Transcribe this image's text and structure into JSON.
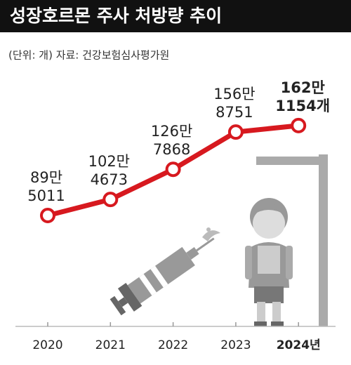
{
  "chart_data": {
    "type": "line",
    "title": "성장호르몬 주사 처방량 추이",
    "subtitle": "(단위: 개)  자료: 건강보험심사평가원",
    "categories": [
      "2020",
      "2021",
      "2022",
      "2023",
      "2024년"
    ],
    "series": [
      {
        "color": "#d7191f",
        "values": [
          895011,
          1024673,
          1267868,
          1568751,
          1621154
        ],
        "value_labels": [
          [
            "89만",
            "5011"
          ],
          [
            "102만",
            "4673"
          ],
          [
            "126만",
            "7868"
          ],
          [
            "156만",
            "8751"
          ],
          [
            "162만",
            "1154개"
          ]
        ]
      }
    ],
    "ylim": [
      0,
      2000000
    ]
  }
}
